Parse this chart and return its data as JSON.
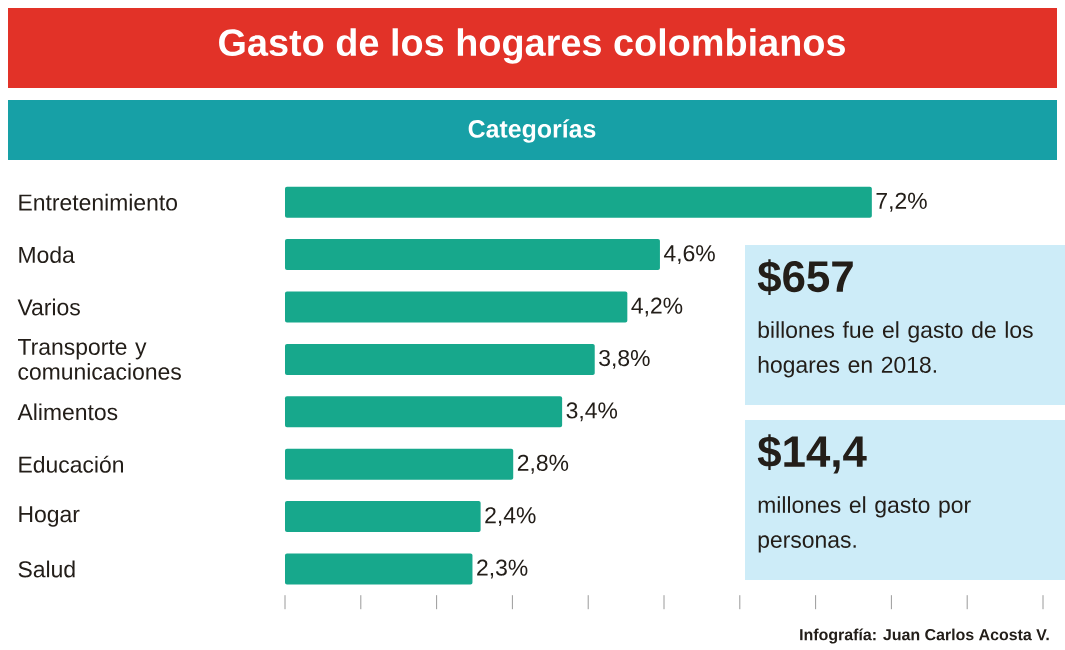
{
  "chart_data": {
    "type": "bar",
    "orientation": "horizontal",
    "title": "Gasto de los hogares colombianos",
    "subtitle": "Categorías",
    "categories": [
      "Entretenimiento",
      "Moda",
      "Varios",
      "Transporte y comunicaciones",
      "Alimentos",
      "Educación",
      "Hogar",
      "Salud"
    ],
    "values": [
      7.2,
      4.6,
      4.2,
      3.8,
      3.4,
      2.8,
      2.4,
      2.3
    ],
    "value_labels": [
      "7,2%",
      "4,6%",
      "4,2%",
      "3,8%",
      "3,4%",
      "2,8%",
      "2,4%",
      "2,3%"
    ],
    "color": "#17a88c",
    "xticks": [
      {
        "value": 0,
        "label": null
      },
      {
        "value": 0.93,
        "label": null
      },
      {
        "value": 1.86,
        "label": null
      },
      {
        "value": 2.79,
        "label": null
      },
      {
        "value": 3.72,
        "label": null
      },
      {
        "value": 4.65,
        "label": null
      },
      {
        "value": 5.58,
        "label": null
      },
      {
        "value": 6.51,
        "label": null
      },
      {
        "value": 7.44,
        "label": null
      },
      {
        "value": 8.37,
        "label": null
      },
      {
        "value": 9.3,
        "label": null
      }
    ],
    "tick_labels": "y",
    "annotations": [
      "$657",
      "billones fue el gasto de los hogares en 2018.",
      "$14,4",
      "millones el gasto por personas.",
      "Infografía: Juan Carlos Acosta V."
    ]
  }
}
